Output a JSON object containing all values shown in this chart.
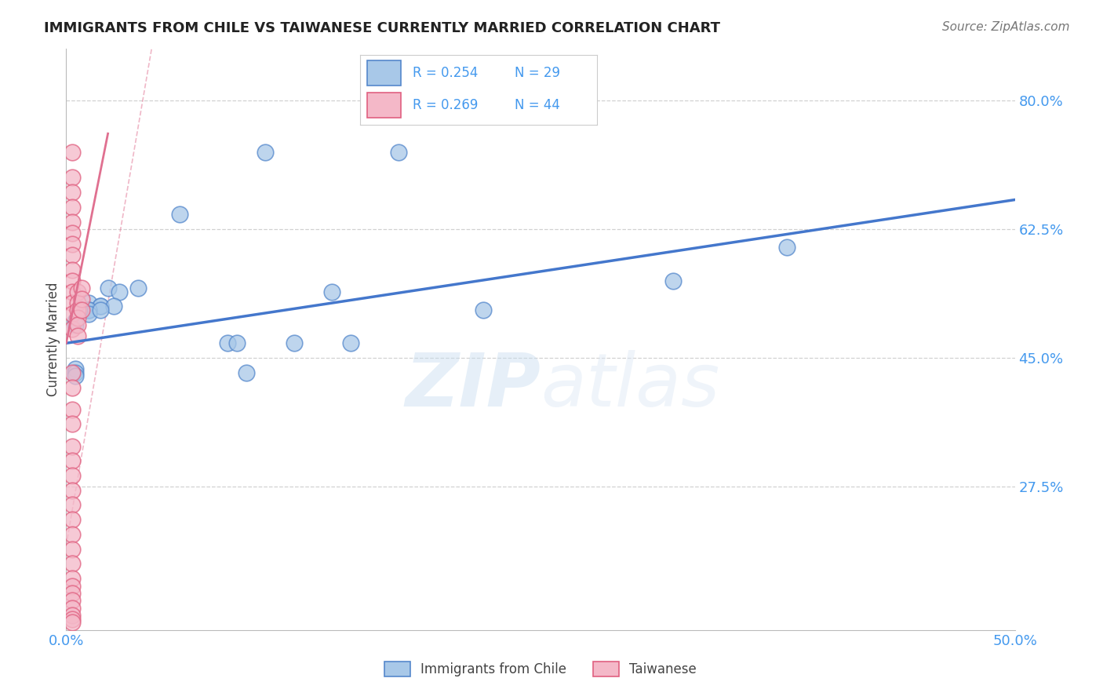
{
  "title": "IMMIGRANTS FROM CHILE VS TAIWANESE CURRENTLY MARRIED CORRELATION CHART",
  "source": "Source: ZipAtlas.com",
  "ylabel": "Currently Married",
  "xlim": [
    0.0,
    0.5
  ],
  "ylim": [
    0.08,
    0.87
  ],
  "yticks": [
    0.275,
    0.45,
    0.625,
    0.8
  ],
  "ytick_labels": [
    "27.5%",
    "45.0%",
    "62.5%",
    "80.0%"
  ],
  "xticks": [
    0.0,
    0.125,
    0.25,
    0.375,
    0.5
  ],
  "xtick_labels": [
    "0.0%",
    "",
    "",
    "",
    "50.0%"
  ],
  "grid_color": "#cccccc",
  "background_color": "#ffffff",
  "watermark_zip": "ZIP",
  "watermark_atlas": "atlas",
  "legend1_r": "R = 0.254",
  "legend1_n": "N = 29",
  "legend2_r": "R = 0.269",
  "legend2_n": "N = 44",
  "blue_color": "#a8c8e8",
  "blue_edge": "#5588cc",
  "pink_color": "#f4b8c8",
  "pink_edge": "#e06080",
  "trend_blue_color": "#4477cc",
  "trend_pink_color": "#e07090",
  "blue_scatter_x": [
    0.105,
    0.06,
    0.175,
    0.022,
    0.038,
    0.028,
    0.012,
    0.018,
    0.012,
    0.018,
    0.025,
    0.012,
    0.012,
    0.018,
    0.007,
    0.22,
    0.14,
    0.32,
    0.38,
    0.005,
    0.005,
    0.085,
    0.09,
    0.095,
    0.005,
    0.005,
    0.005,
    0.12,
    0.15
  ],
  "blue_scatter_y": [
    0.73,
    0.645,
    0.73,
    0.545,
    0.545,
    0.54,
    0.525,
    0.52,
    0.515,
    0.52,
    0.52,
    0.515,
    0.51,
    0.515,
    0.515,
    0.515,
    0.54,
    0.555,
    0.6,
    0.5,
    0.495,
    0.47,
    0.47,
    0.43,
    0.435,
    0.43,
    0.425,
    0.47,
    0.47
  ],
  "pink_scatter_x": [
    0.003,
    0.003,
    0.003,
    0.003,
    0.003,
    0.003,
    0.003,
    0.003,
    0.003,
    0.003,
    0.003,
    0.003,
    0.003,
    0.003,
    0.006,
    0.006,
    0.006,
    0.006,
    0.006,
    0.006,
    0.008,
    0.008,
    0.008,
    0.003,
    0.003,
    0.003,
    0.003,
    0.003,
    0.003,
    0.003,
    0.003,
    0.003,
    0.003,
    0.003,
    0.003,
    0.003,
    0.003,
    0.003,
    0.003,
    0.003,
    0.003,
    0.003,
    0.003,
    0.003
  ],
  "pink_scatter_y": [
    0.73,
    0.695,
    0.675,
    0.655,
    0.635,
    0.62,
    0.605,
    0.59,
    0.57,
    0.555,
    0.54,
    0.525,
    0.51,
    0.49,
    0.54,
    0.525,
    0.515,
    0.505,
    0.495,
    0.48,
    0.545,
    0.53,
    0.515,
    0.43,
    0.41,
    0.38,
    0.36,
    0.33,
    0.31,
    0.29,
    0.27,
    0.25,
    0.23,
    0.21,
    0.19,
    0.17,
    0.15,
    0.14,
    0.13,
    0.12,
    0.11,
    0.1,
    0.095,
    0.09
  ],
  "blue_trend_x0": 0.0,
  "blue_trend_x1": 0.5,
  "blue_trend_y0": 0.47,
  "blue_trend_y1": 0.665,
  "pink_trend_x0": 0.0,
  "pink_trend_x1": 0.022,
  "pink_trend_y0": 0.47,
  "pink_trend_y1": 0.755,
  "bottom_legend_labels": [
    "Immigrants from Chile",
    "Taiwanese"
  ]
}
